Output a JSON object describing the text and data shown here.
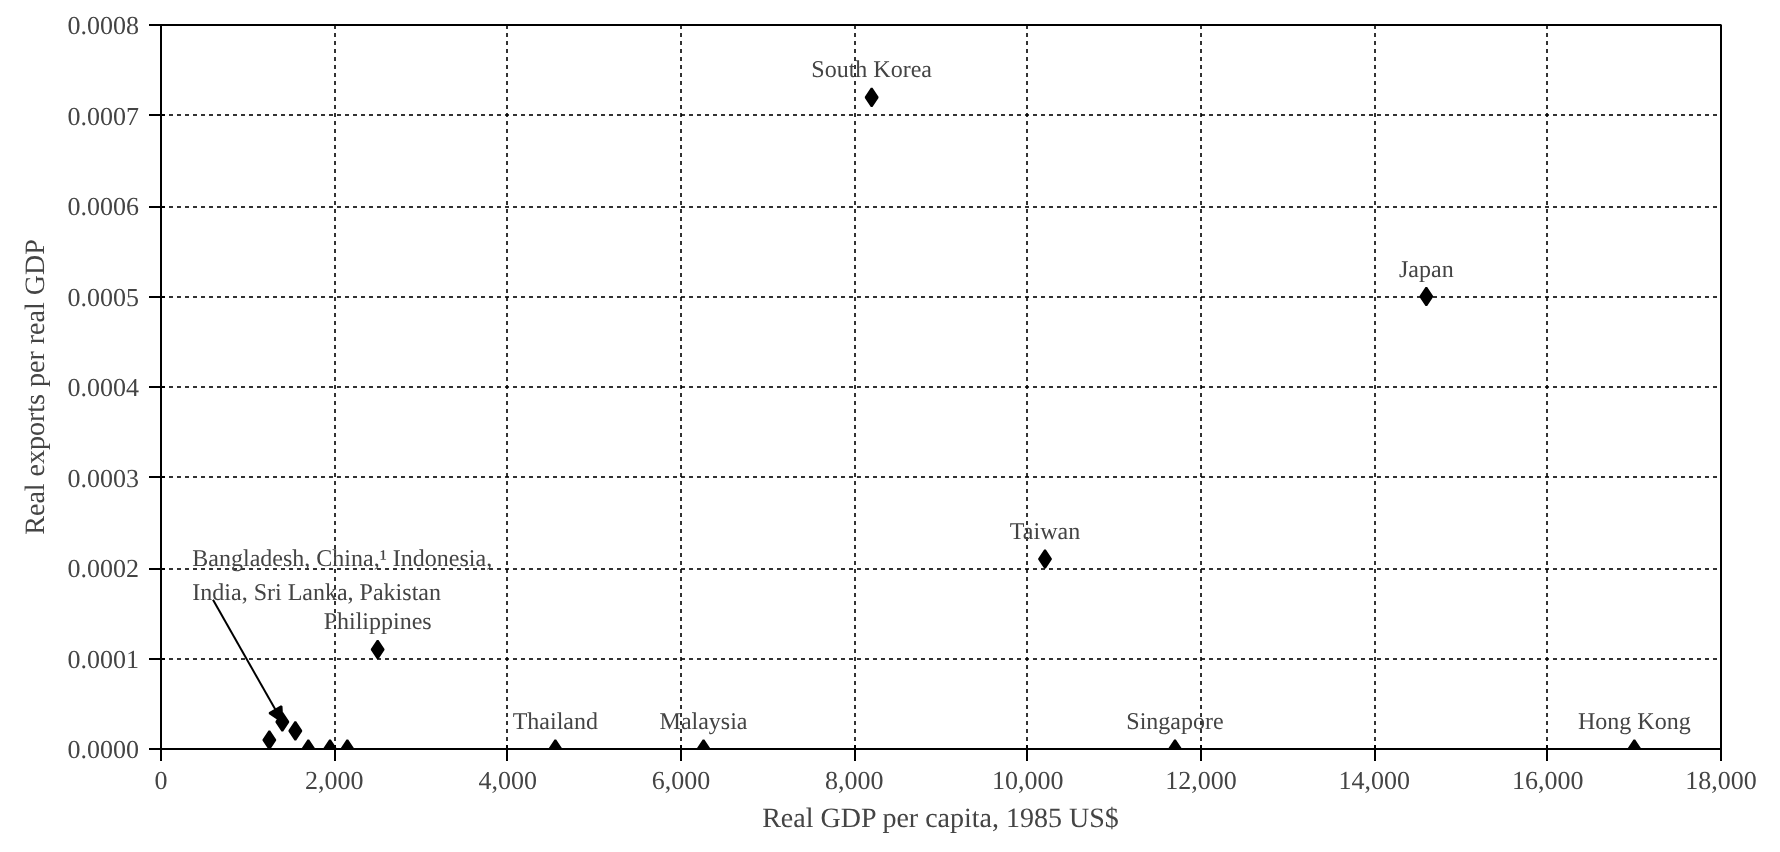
{
  "chart_data": {
    "type": "scatter",
    "xlabel": "Real GDP per capita, 1985 US$",
    "ylabel": "Real exports per real GDP",
    "x": [
      1250,
      1400,
      1550,
      1700,
      1950,
      2150,
      2500,
      4550,
      6260,
      8200,
      10200,
      11700,
      14600,
      17000
    ],
    "values": [
      1e-05,
      3e-05,
      2e-05,
      0,
      0,
      0,
      0.00011,
      0,
      0,
      0.00072,
      0.00021,
      0,
      0.0005,
      0
    ],
    "color": "#000000",
    "marker": "diamond",
    "grid": true,
    "xlim": [
      0,
      18000
    ],
    "xticks": [
      {
        "value": 0,
        "label": "0"
      },
      {
        "value": 2000,
        "label": "2,000"
      },
      {
        "value": 4000,
        "label": "4,000"
      },
      {
        "value": 6000,
        "label": "6,000"
      },
      {
        "value": 8000,
        "label": "8,000"
      },
      {
        "value": 10000,
        "label": "10,000"
      },
      {
        "value": 12000,
        "label": "12,000"
      },
      {
        "value": 14000,
        "label": "14,000"
      },
      {
        "value": 16000,
        "label": "16,000"
      },
      {
        "value": 18000,
        "label": "18,000"
      }
    ],
    "ylim": [
      0,
      0.0008
    ],
    "yticks": [
      {
        "value": 0,
        "label": "0.0000"
      },
      {
        "value": 0.0001,
        "label": "0.0001"
      },
      {
        "value": 0.0002,
        "label": "0.0002"
      },
      {
        "value": 0.0003,
        "label": "0.0003"
      },
      {
        "value": 0.0004,
        "label": "0.0004"
      },
      {
        "value": 0.0005,
        "label": "0.0005"
      },
      {
        "value": 0.0006,
        "label": "0.0006"
      },
      {
        "value": 0.0007,
        "label": "0.0007"
      },
      {
        "value": 0.0008,
        "label": "0.0008"
      }
    ],
    "annotations": [
      {
        "text": "Bangladesh, China,¹ Indonesia,\nIndia, Sri Lanka, Pakistan",
        "x": 1400,
        "y": 3e-05
      },
      {
        "text": "Philippines",
        "x": 2500,
        "y": 0.00011
      },
      {
        "text": "Thailand",
        "x": 4550,
        "y": 0
      },
      {
        "text": "Malaysia",
        "x": 6260,
        "y": 0
      },
      {
        "text": "South Korea",
        "x": 8200,
        "y": 0.00072
      },
      {
        "text": "Taiwan",
        "x": 10200,
        "y": 0.00021
      },
      {
        "text": "Singapore",
        "x": 11700,
        "y": 0
      },
      {
        "text": "Japan",
        "x": 14600,
        "y": 0.0005
      },
      {
        "text": "Hong Kong",
        "x": 17000,
        "y": 0
      }
    ]
  }
}
